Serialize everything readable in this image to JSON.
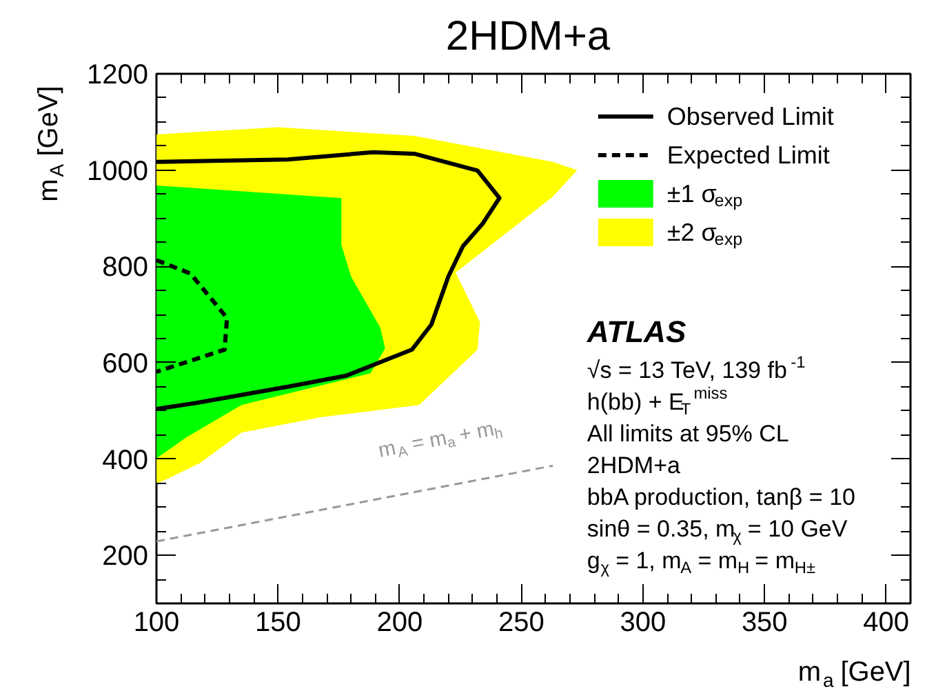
{
  "chart_data": {
    "type": "line",
    "title": "2HDM+a",
    "xlabel": "m$_{a}$ [GeV]",
    "ylabel": "m$_{A}$ [GeV]",
    "xlim": [
      100,
      410
    ],
    "ylim": [
      100,
      1200
    ],
    "xticks": [
      100,
      150,
      200,
      250,
      300,
      350,
      400
    ],
    "yticks": [
      200,
      400,
      600,
      800,
      1000,
      1200
    ],
    "grid": false,
    "legend": "top right",
    "series": [
      {
        "name": "Observed Limit",
        "line_style": "solid",
        "color": "#000000",
        "x": [
          100,
          116,
          154,
          178,
          205,
          213,
          220,
          226,
          234,
          241,
          232,
          206,
          189,
          154,
          100
        ],
        "values": [
          504,
          516,
          550,
          573,
          627,
          679,
          779,
          842,
          888,
          942,
          999,
          1034,
          1037,
          1022,
          1017
        ]
      },
      {
        "name": "Expected Limit",
        "line_style": "dashed",
        "color": "#000000",
        "x": [
          100,
          114,
          129,
          128,
          100
        ],
        "values": [
          813,
          785,
          693,
          627,
          581
        ]
      },
      {
        "name": "±1 σ$_{exp}$",
        "type": "area",
        "color": "#00ff00",
        "x": [
          100,
          176,
          176,
          180,
          192,
          194,
          188,
          135,
          112,
          100
        ],
        "values": [
          968,
          942,
          845,
          779,
          673,
          630,
          578,
          512,
          444,
          401
        ]
      },
      {
        "name": "±2 σ$_{exp}$",
        "type": "area",
        "color": "#ffff00",
        "x": [
          100,
          150,
          206,
          263,
          273,
          263,
          223,
          233,
          232,
          208,
          168,
          135,
          118,
          103,
          100
        ],
        "values": [
          1074,
          1089,
          1071,
          1017,
          1000,
          945,
          787,
          684,
          627,
          512,
          487,
          455,
          392,
          355,
          350
        ]
      },
      {
        "line_style": "dashed",
        "color": "#999999",
        "x": [
          100,
          263
        ],
        "values": [
          229,
          386
        ]
      }
    ],
    "annotations": [
      "m$_{A}$ = m$_{a}$ + m$_{h}$",
      "ATLAS",
      "√s = 13 TeV, 139 fb$^{-1}$",
      "h(bb) + E$_{T}$$^{miss}$",
      "All limits at 95% CL",
      "2HDM+a",
      "bbA production, tanβ = 10",
      "sinθ = 0.35, m$_{χ}$ = 10 GeV",
      "g$_{χ}$ = 1, m$_{A}$ = m$_{H}$ = m$_{H±}$"
    ]
  }
}
